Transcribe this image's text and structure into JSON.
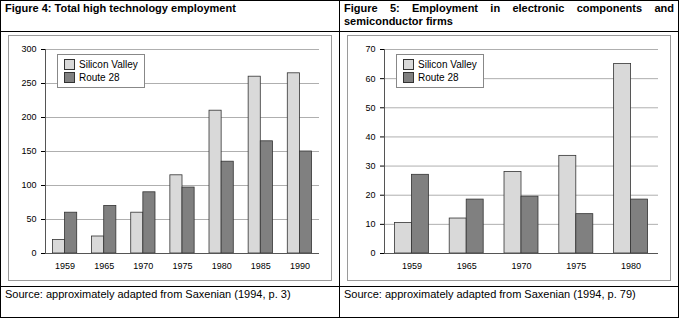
{
  "chart_data": [
    {
      "type": "bar",
      "title": "Figure 4: Total high technology employment",
      "caption": "Source: approximately adapted from Saxenian (1994, p. 3)",
      "categories": [
        "1959",
        "1965",
        "1970",
        "1975",
        "1980",
        "1985",
        "1990"
      ],
      "series": [
        {
          "name": "Silicon Valley",
          "color": "#d9d9d9",
          "values": [
            20,
            25,
            60,
            115,
            210,
            260,
            265
          ]
        },
        {
          "name": "Route 28",
          "color": "#808080",
          "values": [
            60,
            70,
            90,
            97,
            135,
            165,
            150
          ]
        }
      ],
      "ylim": [
        0,
        300
      ],
      "yticks": [
        0,
        50,
        100,
        150,
        200,
        250,
        300
      ],
      "grid": true,
      "legend": "top-left"
    },
    {
      "type": "bar",
      "title": "Figure 5: Employment in electronic components and semiconductor firms",
      "caption": "Source: approximately adapted from Saxenian (1994, p. 79)",
      "categories": [
        "1959",
        "1965",
        "1970",
        "1975",
        "1980"
      ],
      "series": [
        {
          "name": "Silicon Valley",
          "color": "#d9d9d9",
          "values": [
            10.5,
            12,
            28,
            33.5,
            65
          ]
        },
        {
          "name": "Route 28",
          "color": "#808080",
          "values": [
            27,
            18.5,
            19.5,
            13.5,
            18.5
          ]
        }
      ],
      "ylim": [
        0,
        70
      ],
      "yticks": [
        0,
        10,
        20,
        30,
        40,
        50,
        60,
        70
      ],
      "grid": true,
      "legend": "top-left"
    }
  ]
}
